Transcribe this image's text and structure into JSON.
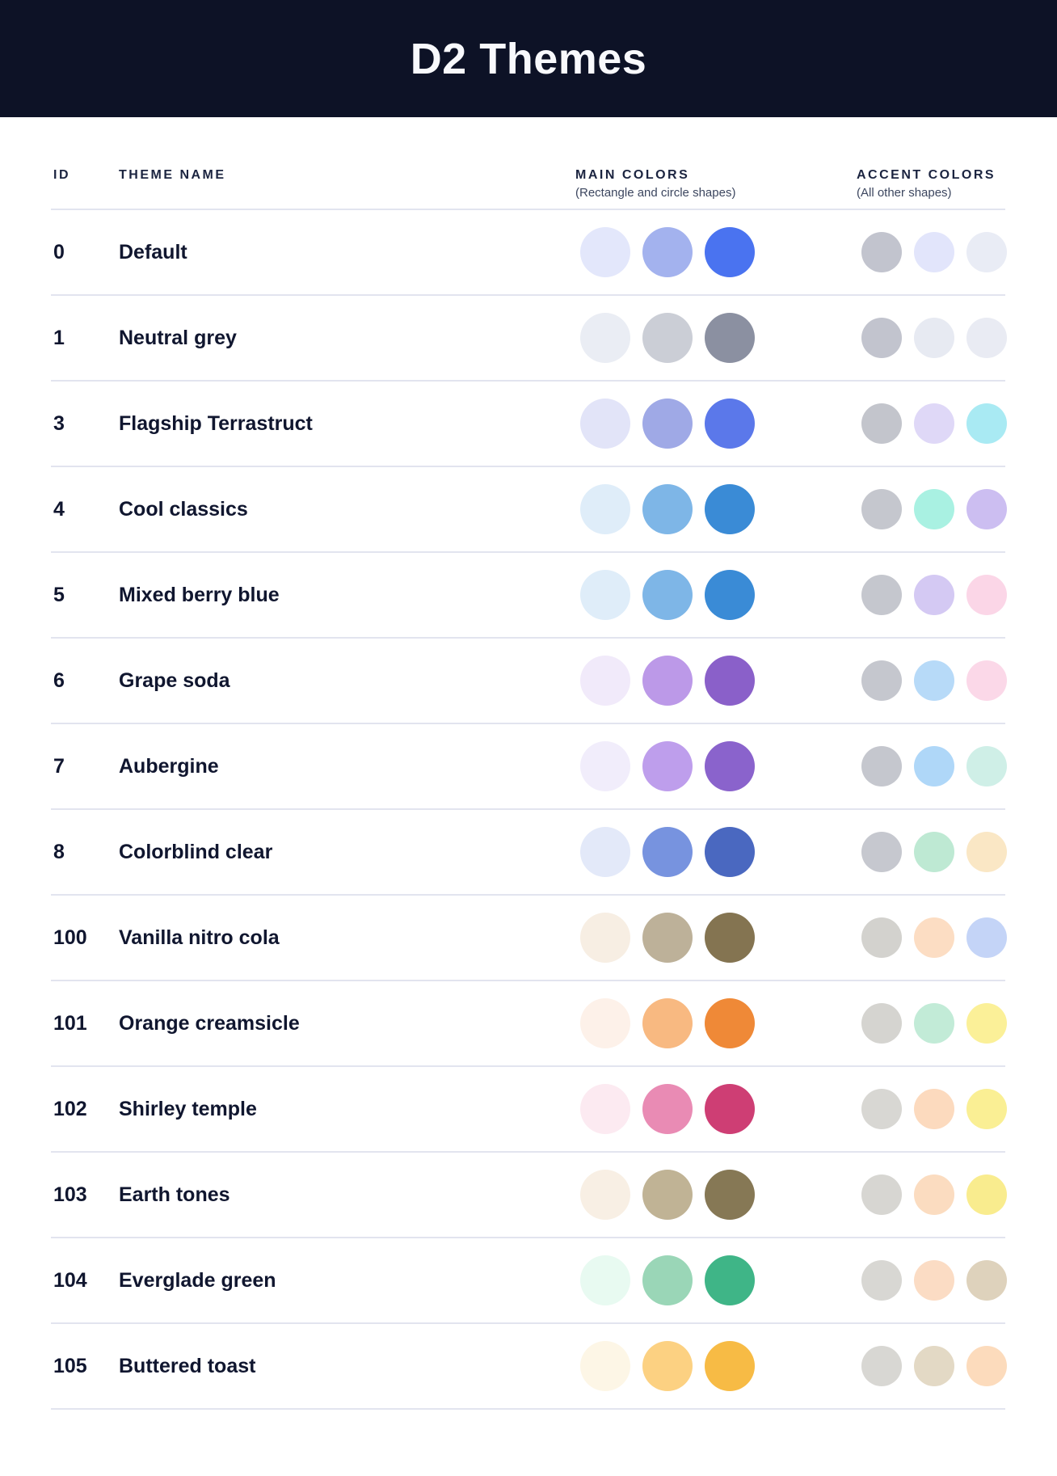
{
  "header": {
    "title": "D2 Themes"
  },
  "ui": {
    "banner_bg": "#0D1226",
    "banner_fg": "#F8F9FC",
    "ink": "#10162F",
    "head_ink": "#1B2440",
    "sub_ink": "#3C465F",
    "divider": "#E2E4EF"
  },
  "table": {
    "columns": {
      "id": "ID",
      "name": "THEME NAME",
      "main": "MAIN COLORS",
      "main_sub": "(Rectangle and circle shapes)",
      "accent": "ACCENT COLORS",
      "accent_sub": "(All other shapes)"
    },
    "rows": [
      {
        "id": "0",
        "name": "Default",
        "main": [
          "#E3E7FB",
          "#A3B2EE",
          "#4A73F0"
        ],
        "accent": [
          "#C2C4CE",
          "#E2E5FB",
          "#E9ECF5"
        ]
      },
      {
        "id": "1",
        "name": "Neutral grey",
        "main": [
          "#EAEDF4",
          "#CBCED6",
          "#8B90A1"
        ],
        "accent": [
          "#C2C4CE",
          "#E7EAF2",
          "#E9EBF3"
        ]
      },
      {
        "id": "3",
        "name": "Flagship Terrastruct",
        "main": [
          "#E2E4F8",
          "#9FA9E6",
          "#5B78EA"
        ],
        "accent": [
          "#C3C5CC",
          "#DFD8F7",
          "#A9EAF3"
        ]
      },
      {
        "id": "4",
        "name": "Cool classics",
        "main": [
          "#DFEDF9",
          "#7EB6E7",
          "#3A8BD6"
        ],
        "accent": [
          "#C5C7CE",
          "#A9F1E2",
          "#CCBEF1"
        ]
      },
      {
        "id": "5",
        "name": "Mixed berry blue",
        "main": [
          "#DFEDF9",
          "#7EB6E7",
          "#3A8BD6"
        ],
        "accent": [
          "#C5C7CE",
          "#D4C9F3",
          "#FBD6E7"
        ]
      },
      {
        "id": "6",
        "name": "Grape soda",
        "main": [
          "#F1EAFA",
          "#BC99E8",
          "#8A60C9"
        ],
        "accent": [
          "#C5C7CE",
          "#B7DAF8",
          "#FBD8E8"
        ]
      },
      {
        "id": "7",
        "name": "Aubergine",
        "main": [
          "#F1EDFB",
          "#BE9EEC",
          "#8A63CC"
        ],
        "accent": [
          "#C5C7CE",
          "#AFD7F8",
          "#CFEFE7"
        ]
      },
      {
        "id": "8",
        "name": "Colorblind clear",
        "main": [
          "#E3E9F9",
          "#7793DF",
          "#4A68C0"
        ],
        "accent": [
          "#C6C8CF",
          "#BEE9D3",
          "#FAE7C5"
        ]
      },
      {
        "id": "100",
        "name": "Vanilla nitro cola",
        "main": [
          "#F7EEE3",
          "#BDB199",
          "#847451"
        ],
        "accent": [
          "#D3D2CE",
          "#FCDDC3",
          "#C4D4F7"
        ]
      },
      {
        "id": "101",
        "name": "Orange creamsicle",
        "main": [
          "#FDF1E9",
          "#F8B981",
          "#EF8937"
        ],
        "accent": [
          "#D5D4D0",
          "#C2EBD7",
          "#FBF098"
        ]
      },
      {
        "id": "102",
        "name": "Shirley temple",
        "main": [
          "#FCEAF1",
          "#E98BB4",
          "#CE3E74"
        ],
        "accent": [
          "#D8D7D3",
          "#FCDABE",
          "#FAEF94"
        ]
      },
      {
        "id": "103",
        "name": "Earth tones",
        "main": [
          "#F8EFE4",
          "#C0B395",
          "#867855"
        ],
        "accent": [
          "#D7D6D2",
          "#FBDCC0",
          "#F9EC8E"
        ]
      },
      {
        "id": "104",
        "name": "Everglade green",
        "main": [
          "#E8FAF1",
          "#9AD6B7",
          "#3FB587"
        ],
        "accent": [
          "#D8D7D3",
          "#FBDCC4",
          "#DED2BC"
        ]
      },
      {
        "id": "105",
        "name": "Buttered toast",
        "main": [
          "#FDF6E6",
          "#FCD182",
          "#F7BB45"
        ],
        "accent": [
          "#D8D7D3",
          "#E3D9C5",
          "#FCDBBC"
        ]
      }
    ]
  }
}
